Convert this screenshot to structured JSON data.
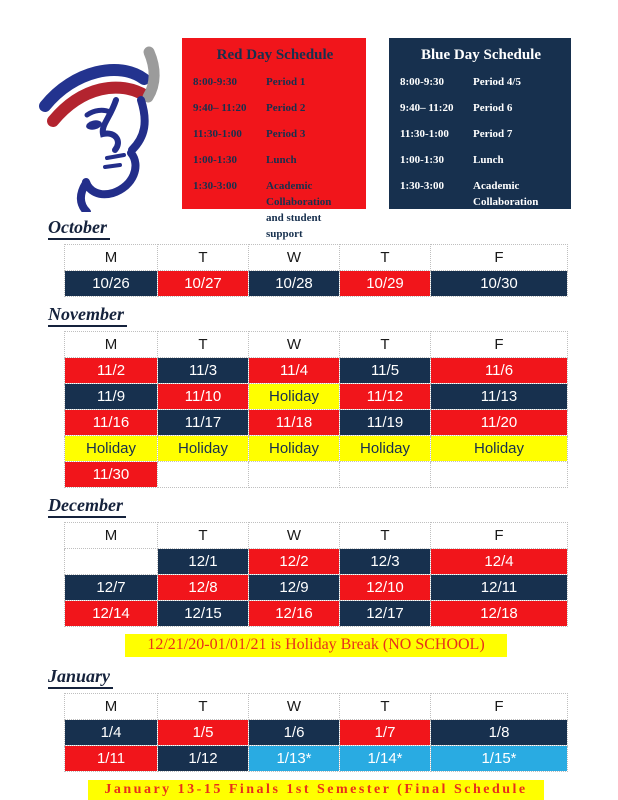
{
  "logo_icon": "patriot-head-logo",
  "colors": {
    "red_day": "#f1151b",
    "blue_day": "#17304e",
    "holiday_yellow": "#ffff00",
    "finals_blue": "#29abe2",
    "banner_text": "#e8301a",
    "white": "#ffffff"
  },
  "schedules": [
    {
      "id": "red",
      "title": "Red Day Schedule",
      "bg": "#f1151b",
      "text_color": "#17304e",
      "rows": [
        {
          "time": "8:00-9:30",
          "label": "Period 1"
        },
        {
          "time": "9:40– 11:20",
          "label": "Period 2"
        },
        {
          "time": "11:30-1:00",
          "label": "Period 3"
        },
        {
          "time": "1:00-1:30",
          "label": "Lunch"
        },
        {
          "time": "1:30-3:00",
          "label": "Academic\nCollaboration\nand student support"
        }
      ]
    },
    {
      "id": "blue",
      "title": "Blue Day Schedule",
      "bg": "#17304e",
      "text_color": "#ffffff",
      "rows": [
        {
          "time": "8:00-9:30",
          "label": "Period 4/5"
        },
        {
          "time": "9:40– 11:20",
          "label": "Period 6"
        },
        {
          "time": "11:30-1:00",
          "label": "Period 7"
        },
        {
          "time": "1:00-1:30",
          "label": "Lunch"
        },
        {
          "time": "1:30-3:00",
          "label": "Academic\nCollaboration\nand student support"
        }
      ]
    }
  ],
  "months": [
    {
      "name": "October",
      "weekdays": [
        "M",
        "T",
        "W",
        "T",
        "F"
      ],
      "rows": [
        [
          {
            "text": "10/26",
            "type": "blue"
          },
          {
            "text": "10/27",
            "type": "red"
          },
          {
            "text": "10/28",
            "type": "blue"
          },
          {
            "text": "10/29",
            "type": "red"
          },
          {
            "text": "10/30",
            "type": "blue"
          }
        ]
      ]
    },
    {
      "name": "November",
      "weekdays": [
        "M",
        "T",
        "W",
        "T",
        "F"
      ],
      "rows": [
        [
          {
            "text": "11/2",
            "type": "red"
          },
          {
            "text": "11/3",
            "type": "blue"
          },
          {
            "text": "11/4",
            "type": "red"
          },
          {
            "text": "11/5",
            "type": "blue"
          },
          {
            "text": "11/6",
            "type": "red"
          }
        ],
        [
          {
            "text": "11/9",
            "type": "blue"
          },
          {
            "text": "11/10",
            "type": "red"
          },
          {
            "text": "Holiday",
            "type": "yellow"
          },
          {
            "text": "11/12",
            "type": "red"
          },
          {
            "text": "11/13",
            "type": "blue"
          }
        ],
        [
          {
            "text": "11/16",
            "type": "red"
          },
          {
            "text": "11/17",
            "type": "blue"
          },
          {
            "text": "11/18",
            "type": "red"
          },
          {
            "text": "11/19",
            "type": "blue"
          },
          {
            "text": "11/20",
            "type": "red"
          }
        ],
        [
          {
            "text": "Holiday",
            "type": "yellow"
          },
          {
            "text": "Holiday",
            "type": "yellow"
          },
          {
            "text": "Holiday",
            "type": "yellow"
          },
          {
            "text": "Holiday",
            "type": "yellow"
          },
          {
            "text": "Holiday",
            "type": "yellow"
          }
        ],
        [
          {
            "text": "11/30",
            "type": "red"
          },
          {
            "text": "",
            "type": "empty"
          },
          {
            "text": "",
            "type": "empty"
          },
          {
            "text": "",
            "type": "empty"
          },
          {
            "text": "",
            "type": "empty"
          }
        ]
      ]
    },
    {
      "name": "December",
      "weekdays": [
        "M",
        "T",
        "W",
        "T",
        "F"
      ],
      "rows": [
        [
          {
            "text": "",
            "type": "empty"
          },
          {
            "text": "12/1",
            "type": "blue"
          },
          {
            "text": "12/2",
            "type": "red"
          },
          {
            "text": "12/3",
            "type": "blue"
          },
          {
            "text": "12/4",
            "type": "red"
          }
        ],
        [
          {
            "text": "12/7",
            "type": "blue"
          },
          {
            "text": "12/8",
            "type": "red"
          },
          {
            "text": "12/9",
            "type": "blue"
          },
          {
            "text": "12/10",
            "type": "red"
          },
          {
            "text": "12/11",
            "type": "blue"
          }
        ],
        [
          {
            "text": "12/14",
            "type": "red"
          },
          {
            "text": "12/15",
            "type": "blue"
          },
          {
            "text": "12/16",
            "type": "red"
          },
          {
            "text": "12/17",
            "type": "blue"
          },
          {
            "text": "12/18",
            "type": "red"
          }
        ]
      ],
      "banner": {
        "text": "12/21/20-01/01/21 is Holiday Break (NO SCHOOL)",
        "style": "holiday"
      }
    },
    {
      "name": "January",
      "weekdays": [
        "M",
        "T",
        "W",
        "T",
        "F"
      ],
      "rows": [
        [
          {
            "text": "1/4",
            "type": "blue"
          },
          {
            "text": "1/5",
            "type": "red"
          },
          {
            "text": "1/6",
            "type": "blue"
          },
          {
            "text": "1/7",
            "type": "red"
          },
          {
            "text": "1/8",
            "type": "blue"
          }
        ],
        [
          {
            "text": "1/11",
            "type": "red"
          },
          {
            "text": "1/12",
            "type": "blue"
          },
          {
            "text": "1/13*",
            "type": "cyan"
          },
          {
            "text": "1/14*",
            "type": "cyan"
          },
          {
            "text": "1/15*",
            "type": "cyan"
          }
        ]
      ],
      "banner": {
        "text": "January 13-15 Finals 1st Semester (Final Schedule TBA)",
        "style": "finals"
      }
    }
  ]
}
